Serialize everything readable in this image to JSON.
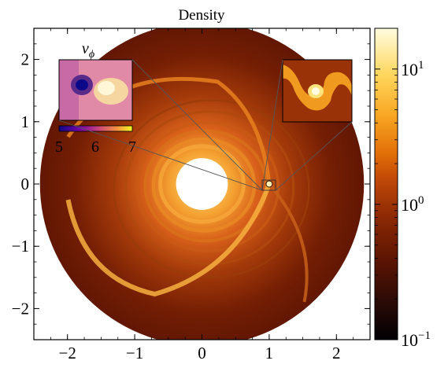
{
  "chart_data": {
    "type": "heatmap",
    "title": "Density",
    "xlabel": "",
    "ylabel": "",
    "xlim": [
      -2.5,
      2.5
    ],
    "ylim": [
      -2.5,
      2.5
    ],
    "x_ticks": [
      -2,
      -1,
      0,
      1,
      2
    ],
    "y_ticks": [
      -2,
      -1,
      0,
      1,
      2
    ],
    "x_tick_labels": [
      "−2",
      "−1",
      "0",
      "1",
      "2"
    ],
    "y_tick_labels": [
      "−2",
      "−1",
      "0",
      "1",
      "2"
    ],
    "colormap": "inferno",
    "colorbar": {
      "scale": "log",
      "range": [
        0.1,
        20
      ],
      "ticks": [
        {
          "value": 0.1,
          "base": "10",
          "exp": "−1"
        },
        {
          "value": 1,
          "base": "10",
          "exp": "0"
        },
        {
          "value": 10,
          "base": "10",
          "exp": "1"
        }
      ]
    },
    "disk": {
      "outer_radius": 2.5,
      "inner_radius": 0.4,
      "planet": {
        "x": 1.0,
        "y": 0.0
      }
    },
    "insets": [
      {
        "quantity": "v",
        "quantity_sub": "ϕ",
        "colorbar_ticks": [
          "5",
          "6",
          "7"
        ],
        "colorbar_range": [
          5,
          7
        ]
      },
      {
        "quantity": "density zoom"
      }
    ],
    "grid": false,
    "colors": {
      "bg_dark": "#5c1402",
      "spiral": "#e06a10",
      "bright": "#ffe89a",
      "hole": "#ffffff"
    }
  }
}
